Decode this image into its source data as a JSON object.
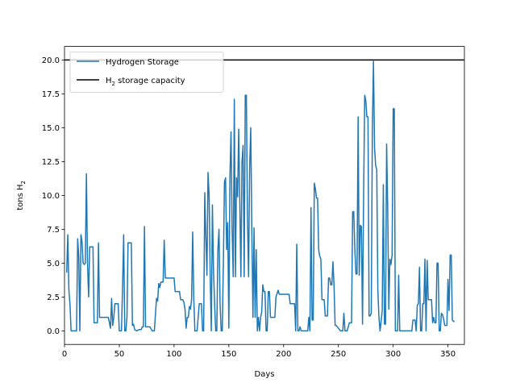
{
  "chart_data": {
    "type": "line",
    "xlabel": "Days",
    "ylabel": "tons H",
    "ylabel_sub": "2",
    "xlim": [
      0,
      365
    ],
    "ylim": [
      -1,
      21
    ],
    "xticks": [
      0,
      50,
      100,
      150,
      200,
      250,
      300,
      350
    ],
    "yticks": [
      0.0,
      2.5,
      5.0,
      7.5,
      10.0,
      12.5,
      15.0,
      17.5,
      20.0
    ],
    "ytick_labels": [
      "0.0",
      "2.5",
      "5.0",
      "7.5",
      "10.0",
      "12.5",
      "15.0",
      "17.5",
      "20.0"
    ],
    "grid": false,
    "legend_position": "top-left",
    "series": [
      {
        "name": "Hydrogen Storage",
        "color": "#1f77b4",
        "points": [
          [
            2,
            4.3
          ],
          [
            3,
            7.1
          ],
          [
            4,
            3.0
          ],
          [
            5,
            2.0
          ],
          [
            6,
            0.0
          ],
          [
            8,
            0.0
          ],
          [
            9,
            0.0
          ],
          [
            10,
            0.0
          ],
          [
            11,
            0.0
          ],
          [
            12,
            6.8
          ],
          [
            13,
            5.5
          ],
          [
            14,
            0.0
          ],
          [
            15,
            7.1
          ],
          [
            16,
            6.6
          ],
          [
            17,
            5.0
          ],
          [
            18,
            4.9
          ],
          [
            19,
            5.0
          ],
          [
            20,
            11.6
          ],
          [
            21,
            5.0
          ],
          [
            22,
            2.5
          ],
          [
            23,
            6.2
          ],
          [
            24,
            6.2
          ],
          [
            25,
            6.2
          ],
          [
            26,
            6.2
          ],
          [
            27,
            0.6
          ],
          [
            28,
            0.6
          ],
          [
            29,
            0.6
          ],
          [
            30,
            0.6
          ],
          [
            31,
            6.5
          ],
          [
            32,
            1.0
          ],
          [
            33,
            1.0
          ],
          [
            35,
            1.0
          ],
          [
            40,
            1.0
          ],
          [
            42,
            0.2
          ],
          [
            43,
            2.4
          ],
          [
            44,
            0.4
          ],
          [
            45,
            1.0
          ],
          [
            46,
            2.0
          ],
          [
            48,
            2.0
          ],
          [
            49,
            2.0
          ],
          [
            50,
            0.0
          ],
          [
            51,
            0.0
          ],
          [
            52,
            0.0
          ],
          [
            53,
            3.2
          ],
          [
            54,
            7.1
          ],
          [
            55,
            0.0
          ],
          [
            56,
            0.0
          ],
          [
            57,
            1.0
          ],
          [
            58,
            6.5
          ],
          [
            61,
            6.5
          ],
          [
            62,
            0.4
          ],
          [
            63,
            0.5
          ],
          [
            64,
            0.1
          ],
          [
            66,
            0.0
          ],
          [
            68,
            0.1
          ],
          [
            70,
            0.1
          ],
          [
            71,
            0.3
          ],
          [
            72,
            0.3
          ],
          [
            73,
            7.7
          ],
          [
            74,
            0.3
          ],
          [
            78,
            0.3
          ],
          [
            80,
            0.0
          ],
          [
            82,
            0.0
          ],
          [
            84,
            2.4
          ],
          [
            85,
            2.2
          ],
          [
            86,
            3.5
          ],
          [
            87,
            3.2
          ],
          [
            88,
            3.6
          ],
          [
            90,
            3.6
          ],
          [
            91,
            6.7
          ],
          [
            92,
            3.9
          ],
          [
            95,
            3.9
          ],
          [
            100,
            3.9
          ],
          [
            101,
            2.9
          ],
          [
            103,
            2.9
          ],
          [
            105,
            2.9
          ],
          [
            106,
            2.3
          ],
          [
            108,
            2.3
          ],
          [
            109,
            2.1
          ],
          [
            110,
            1.6
          ],
          [
            111,
            0.2
          ],
          [
            112,
            1.0
          ],
          [
            113,
            1.0
          ],
          [
            114,
            1.8
          ],
          [
            115,
            1.6
          ],
          [
            116,
            2.3
          ],
          [
            117,
            7.3
          ],
          [
            118,
            2.4
          ],
          [
            119,
            0.0
          ],
          [
            120,
            0.0
          ],
          [
            121,
            0.0
          ],
          [
            122,
            1.0
          ],
          [
            123,
            2.0
          ],
          [
            124,
            2.0
          ],
          [
            125,
            2.0
          ],
          [
            126,
            0.0
          ],
          [
            127,
            0.0
          ],
          [
            128,
            10.2
          ],
          [
            129,
            7.0
          ],
          [
            130,
            4.1
          ],
          [
            131,
            11.7
          ],
          [
            132,
            10.0
          ],
          [
            133,
            4.0
          ],
          [
            134,
            0.0
          ],
          [
            135,
            9.3
          ],
          [
            136,
            4.5
          ],
          [
            137,
            2.0
          ],
          [
            138,
            0.0
          ],
          [
            139,
            0.0
          ],
          [
            140,
            6.0
          ],
          [
            141,
            7.5
          ],
          [
            142,
            2.0
          ],
          [
            143,
            0.0
          ],
          [
            144,
            0.0
          ],
          [
            145,
            5.0
          ],
          [
            146,
            11.0
          ],
          [
            147,
            11.3
          ],
          [
            148,
            6.0
          ],
          [
            149,
            8.0
          ],
          [
            150,
            0.2
          ],
          [
            151,
            11.4
          ],
          [
            152,
            14.7
          ],
          [
            153,
            7.5
          ],
          [
            154,
            4.0
          ],
          [
            155,
            17.1
          ],
          [
            156,
            4.0
          ],
          [
            157,
            11.3
          ],
          [
            158,
            9.9
          ],
          [
            159,
            14.9
          ],
          [
            160,
            9.5
          ],
          [
            161,
            4.0
          ],
          [
            162,
            12.5
          ],
          [
            163,
            13.7
          ],
          [
            164,
            4.0
          ],
          [
            165,
            17.4
          ],
          [
            166,
            17.4
          ],
          [
            167,
            8.3
          ],
          [
            168,
            4.0
          ],
          [
            169,
            12.1
          ],
          [
            170,
            15.0
          ],
          [
            171,
            7.3
          ],
          [
            172,
            1.0
          ],
          [
            173,
            7.6
          ],
          [
            174,
            1.0
          ],
          [
            175,
            6.0
          ],
          [
            176,
            0.0
          ],
          [
            177,
            1.0
          ],
          [
            178,
            0.0
          ],
          [
            179,
            1.0
          ],
          [
            180,
            1.4
          ],
          [
            181,
            3.4
          ],
          [
            182,
            2.9
          ],
          [
            183,
            2.9
          ],
          [
            184,
            0.0
          ],
          [
            185,
            0.0
          ],
          [
            186,
            2.9
          ],
          [
            187,
            2.9
          ],
          [
            188,
            1.0
          ],
          [
            190,
            1.0
          ],
          [
            192,
            1.0
          ],
          [
            193,
            2.5
          ],
          [
            195,
            3.0
          ],
          [
            196,
            2.7
          ],
          [
            198,
            2.7
          ],
          [
            200,
            2.7
          ],
          [
            202,
            2.7
          ],
          [
            204,
            2.7
          ],
          [
            205,
            2.7
          ],
          [
            206,
            2.0
          ],
          [
            208,
            2.0
          ],
          [
            210,
            2.0
          ],
          [
            211,
            0.0
          ],
          [
            212,
            6.4
          ],
          [
            213,
            0.0
          ],
          [
            214,
            0.0
          ],
          [
            215,
            0.3
          ],
          [
            216,
            0.0
          ],
          [
            218,
            0.0
          ],
          [
            220,
            0.0
          ],
          [
            221,
            0.0
          ],
          [
            222,
            0.0
          ],
          [
            223,
            1.0
          ],
          [
            224,
            0.0
          ],
          [
            225,
            9.1
          ],
          [
            226,
            0.8
          ],
          [
            227,
            0.8
          ],
          [
            228,
            10.9
          ],
          [
            229,
            10.5
          ],
          [
            230,
            9.8
          ],
          [
            231,
            9.8
          ],
          [
            232,
            6.0
          ],
          [
            233,
            5.5
          ],
          [
            234,
            5.3
          ],
          [
            235,
            2.3
          ],
          [
            236,
            2.3
          ],
          [
            237,
            2.3
          ],
          [
            238,
            1.1
          ],
          [
            239,
            1.1
          ],
          [
            240,
            1.1
          ],
          [
            241,
            3.9
          ],
          [
            242,
            3.9
          ],
          [
            243,
            3.4
          ],
          [
            244,
            3.4
          ],
          [
            245,
            5.1
          ],
          [
            246,
            3.4
          ],
          [
            247,
            0.4
          ],
          [
            248,
            0.4
          ],
          [
            250,
            0.2
          ],
          [
            252,
            0.0
          ],
          [
            254,
            0.0
          ],
          [
            255,
            1.3
          ],
          [
            256,
            0.0
          ],
          [
            258,
            0.0
          ],
          [
            259,
            0.3
          ],
          [
            260,
            0.6
          ],
          [
            261,
            0.6
          ],
          [
            262,
            0.6
          ],
          [
            263,
            8.8
          ],
          [
            264,
            8.8
          ],
          [
            265,
            6.0
          ],
          [
            266,
            4.2
          ],
          [
            267,
            4.2
          ],
          [
            268,
            15.8
          ],
          [
            269,
            4.1
          ],
          [
            270,
            7.8
          ],
          [
            271,
            7.7
          ],
          [
            272,
            0.5
          ],
          [
            273,
            9.9
          ],
          [
            274,
            17.4
          ],
          [
            275,
            17.0
          ],
          [
            276,
            15.8
          ],
          [
            277,
            15.8
          ],
          [
            278,
            1.1
          ],
          [
            279,
            1.1
          ],
          [
            280,
            1.3
          ],
          [
            281,
            15.0
          ],
          [
            282,
            19.9
          ],
          [
            283,
            13.5
          ],
          [
            284,
            12.2
          ],
          [
            285,
            11.9
          ],
          [
            286,
            3.0
          ],
          [
            287,
            1.0
          ],
          [
            288,
            0.0
          ],
          [
            289,
            0.7
          ],
          [
            290,
            1.5
          ],
          [
            291,
            10.8
          ],
          [
            292,
            0.5
          ],
          [
            293,
            0.5
          ],
          [
            294,
            13.8
          ],
          [
            295,
            9.0
          ],
          [
            296,
            1.6
          ],
          [
            297,
            5.3
          ],
          [
            298,
            4.9
          ],
          [
            299,
            5.6
          ],
          [
            300,
            16.4
          ],
          [
            301,
            16.4
          ],
          [
            302,
            0.0
          ],
          [
            303,
            0.0
          ],
          [
            304,
            0.0
          ],
          [
            305,
            4.1
          ],
          [
            306,
            0.0
          ],
          [
            308,
            0.0
          ],
          [
            310,
            0.0
          ],
          [
            312,
            0.0
          ],
          [
            315,
            0.0
          ],
          [
            317,
            0.0
          ],
          [
            318,
            0.8
          ],
          [
            319,
            0.8
          ],
          [
            320,
            0.8
          ],
          [
            321,
            0.0
          ],
          [
            322,
            1.9
          ],
          [
            323,
            2.0
          ],
          [
            324,
            4.7
          ],
          [
            325,
            0.0
          ],
          [
            326,
            0.0
          ],
          [
            327,
            2.0
          ],
          [
            328,
            2.0
          ],
          [
            329,
            5.3
          ],
          [
            330,
            0.0
          ],
          [
            331,
            5.2
          ],
          [
            332,
            2.3
          ],
          [
            333,
            2.3
          ],
          [
            335,
            2.3
          ],
          [
            336,
            0.6
          ],
          [
            337,
            1.0
          ],
          [
            338,
            0.6
          ],
          [
            339,
            0.6
          ],
          [
            340,
            5.0
          ],
          [
            341,
            5.0
          ],
          [
            342,
            0.0
          ],
          [
            343,
            0.0
          ],
          [
            344,
            1.3
          ],
          [
            345,
            1.2
          ],
          [
            346,
            0.9
          ],
          [
            347,
            0.4
          ],
          [
            348,
            0.4
          ],
          [
            349,
            0.4
          ],
          [
            350,
            3.8
          ],
          [
            351,
            1.5
          ],
          [
            352,
            5.6
          ],
          [
            353,
            5.6
          ],
          [
            354,
            0.8
          ],
          [
            355,
            0.7
          ],
          [
            356,
            0.7
          ]
        ]
      },
      {
        "name": "H",
        "name_sub": "2",
        "name_suffix": " storage capacity",
        "color": "#000000",
        "points": [
          [
            0,
            20.0
          ],
          [
            365,
            20.0
          ]
        ]
      }
    ]
  }
}
